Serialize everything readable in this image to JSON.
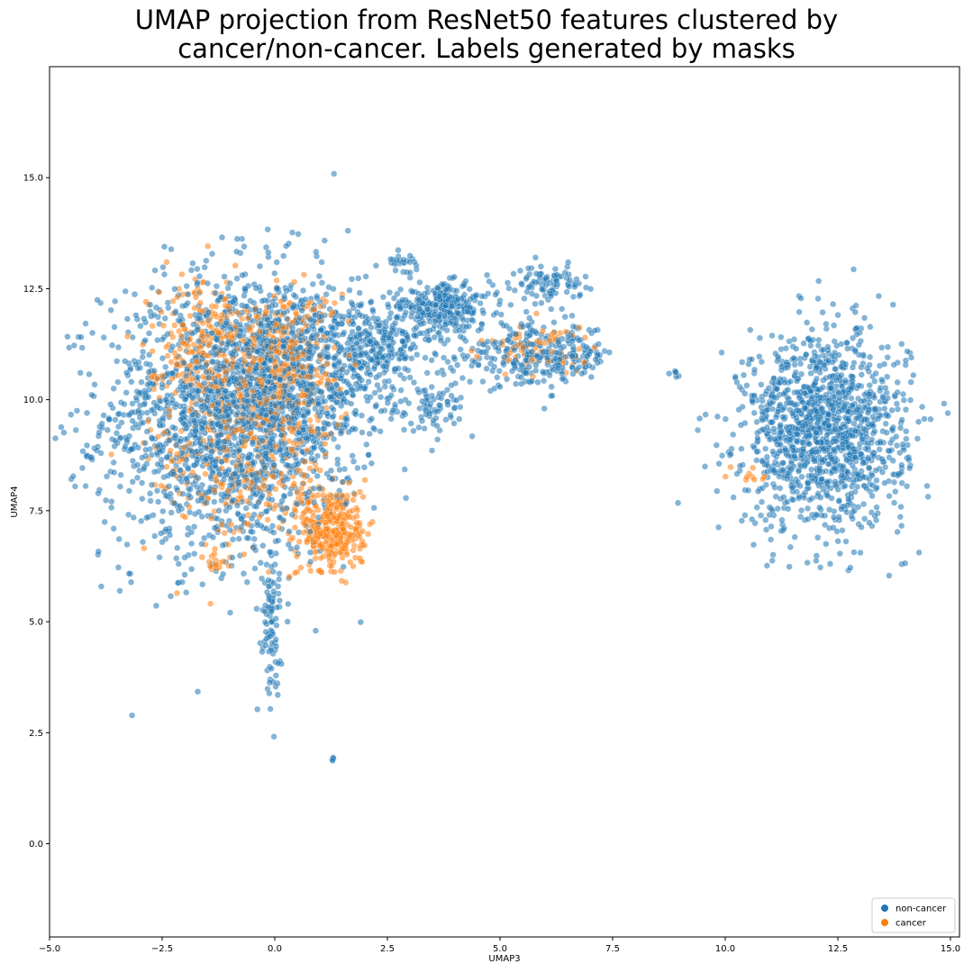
{
  "chart_data": {
    "type": "scatter",
    "title_lines": [
      "UMAP projection from ResNet50 features clustered by",
      "cancer/non-cancer. Labels generated by masks"
    ],
    "xlabel": "UMAP3",
    "ylabel": "UMAP4",
    "xlim": [
      -5.0,
      15.2
    ],
    "ylim": [
      -2.1,
      17.5
    ],
    "xticks": [
      -5.0,
      -2.5,
      0.0,
      2.5,
      5.0,
      7.5,
      10.0,
      12.5,
      15.0
    ],
    "yticks": [
      0.0,
      2.5,
      5.0,
      7.5,
      10.0,
      12.5,
      15.0
    ],
    "grid": false,
    "legend_position": "lower-right",
    "series": [
      {
        "name": "non-cancer",
        "color": "#1f77b4",
        "approx_clusters": [
          {
            "cx": -1.0,
            "cy": 9.6,
            "sx": 1.4,
            "sy": 1.6,
            "n": 1700
          },
          {
            "cx": 0.3,
            "cy": 10.6,
            "sx": 1.0,
            "sy": 1.1,
            "n": 600
          },
          {
            "cx": 2.3,
            "cy": 11.2,
            "sx": 0.8,
            "sy": 0.6,
            "n": 350
          },
          {
            "cx": 3.8,
            "cy": 12.1,
            "sx": 0.5,
            "sy": 0.25,
            "n": 250
          },
          {
            "cx": 5.8,
            "cy": 11.0,
            "sx": 0.9,
            "sy": 0.35,
            "n": 300
          },
          {
            "cx": 6.1,
            "cy": 12.6,
            "sx": 0.35,
            "sy": 0.2,
            "n": 90
          },
          {
            "cx": 2.8,
            "cy": 13.1,
            "sx": 0.2,
            "sy": 0.1,
            "n": 25
          },
          {
            "cx": 3.6,
            "cy": 9.8,
            "sx": 0.3,
            "sy": 0.3,
            "n": 60
          },
          {
            "cx": -0.1,
            "cy": 5.0,
            "sx": 0.12,
            "sy": 0.8,
            "n": 90
          },
          {
            "cx": 12.2,
            "cy": 9.3,
            "sx": 0.9,
            "sy": 1.1,
            "n": 1300
          },
          {
            "cx": 8.9,
            "cy": 10.6,
            "sx": 0.05,
            "sy": 0.05,
            "n": 6
          },
          {
            "cx": 1.3,
            "cy": 1.9,
            "sx": 0.03,
            "sy": 0.03,
            "n": 4
          },
          {
            "cx": -4.1,
            "cy": 8.7,
            "sx": 0.05,
            "sy": 0.05,
            "n": 5
          }
        ]
      },
      {
        "name": "cancer",
        "color": "#ff7f0e",
        "approx_clusters": [
          {
            "cx": 1.3,
            "cy": 7.1,
            "sx": 0.35,
            "sy": 0.5,
            "n": 350
          },
          {
            "cx": -1.6,
            "cy": 11.4,
            "sx": 0.6,
            "sy": 0.7,
            "n": 200
          },
          {
            "cx": 0.2,
            "cy": 10.8,
            "sx": 0.6,
            "sy": 0.9,
            "n": 300
          },
          {
            "cx": -0.7,
            "cy": 9.0,
            "sx": 1.0,
            "sy": 1.3,
            "n": 400
          },
          {
            "cx": -1.3,
            "cy": 6.3,
            "sx": 0.1,
            "sy": 0.1,
            "n": 12
          },
          {
            "cx": 5.8,
            "cy": 11.1,
            "sx": 0.7,
            "sy": 0.3,
            "n": 70
          },
          {
            "cx": 10.6,
            "cy": 8.3,
            "sx": 0.2,
            "sy": 0.1,
            "n": 10
          }
        ]
      }
    ]
  }
}
